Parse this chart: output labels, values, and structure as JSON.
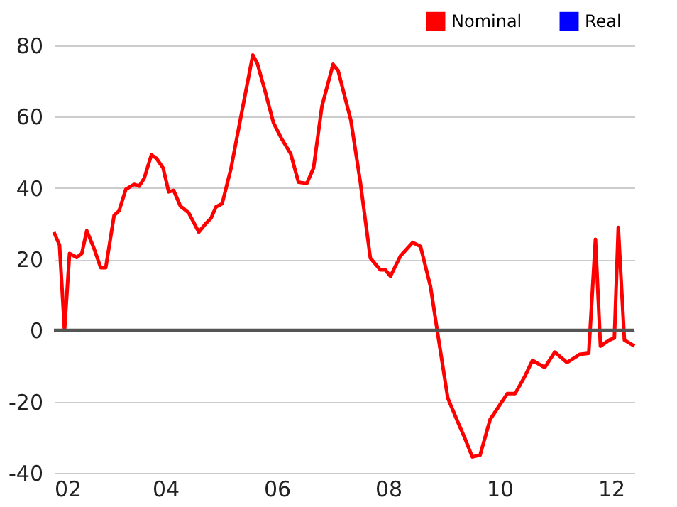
{
  "chart_data": {
    "type": "line",
    "x": [
      2002.0,
      2002.1,
      2002.19,
      2002.28,
      2002.41,
      2002.5,
      2002.59,
      2002.72,
      2002.84,
      2002.93,
      2003.08,
      2003.17,
      2003.29,
      2003.44,
      2003.53,
      2003.62,
      2003.75,
      2003.84,
      2003.96,
      2004.06,
      2004.15,
      2004.27,
      2004.42,
      2004.6,
      2004.72,
      2004.82,
      2004.91,
      2005.02,
      2005.18,
      2005.36,
      2005.45,
      2005.57,
      2005.65,
      2005.79,
      2005.94,
      2006.08,
      2006.25,
      2006.39,
      2006.54,
      2006.66,
      2006.81,
      2007.01,
      2007.1,
      2007.33,
      2007.5,
      2007.68,
      2007.86,
      2007.95,
      2008.04,
      2008.22,
      2008.44,
      2008.58,
      2008.76,
      2008.89,
      2009.07,
      2009.25,
      2009.38,
      2009.51,
      2009.65,
      2009.83,
      2010.14,
      2010.28,
      2010.45,
      2010.59,
      2010.81,
      2010.99,
      2011.21,
      2011.44,
      2011.6,
      2011.72,
      2011.81,
      2011.97,
      2012.06,
      2012.13,
      2012.24,
      2012.42
    ],
    "series": [
      {
        "name": "Nominal",
        "color": "#ff0000",
        "values": [
          27.6,
          24,
          0,
          21.6,
          20.5,
          21.6,
          28,
          23,
          17.6,
          17.6,
          32.3,
          33.6,
          39.6,
          41,
          40.5,
          42.7,
          49.3,
          48.3,
          45.6,
          38.9,
          39.3,
          34.9,
          33,
          27.6,
          29.9,
          31.5,
          34.7,
          35.6,
          45.6,
          60.3,
          67.6,
          77.3,
          75,
          67.2,
          58.3,
          54,
          49.6,
          41.6,
          41.3,
          45.6,
          62.9,
          74.7,
          73,
          59,
          41.6,
          20.3,
          17,
          17,
          15.2,
          20.9,
          24.7,
          23.6,
          12.3,
          -1,
          -19,
          -25.7,
          -30.4,
          -35.5,
          -35,
          -25,
          -17.7,
          -17.7,
          -13,
          -8.4,
          -10.4,
          -6.1,
          -9,
          -6.7,
          -6.4,
          25.6,
          -4.4,
          -2.7,
          -2.1,
          28.9,
          -2.7,
          -4.4
        ]
      },
      {
        "name": "Real",
        "color": "#0000ff",
        "values": [
          null,
          null,
          null,
          null,
          null,
          null,
          null,
          null,
          null,
          null,
          null,
          null,
          null,
          null,
          null,
          null,
          null,
          null,
          null,
          null,
          null,
          null,
          null,
          null,
          null,
          null,
          null,
          null,
          null,
          null,
          null,
          null,
          null,
          null,
          null,
          null,
          null,
          null,
          null,
          null,
          null,
          null,
          null,
          null,
          null,
          null,
          null,
          null,
          null,
          null,
          null,
          null,
          null,
          null,
          null,
          null,
          null,
          null,
          null,
          null,
          null,
          null,
          null,
          null,
          null,
          null,
          null,
          null,
          null,
          null,
          null,
          null,
          null,
          null,
          null,
          null
        ]
      }
    ],
    "xlim": [
      2002.0,
      2012.42
    ],
    "xticks": [
      {
        "value": 2002,
        "label": "02"
      },
      {
        "value": 2004,
        "label": "04"
      },
      {
        "value": 2006,
        "label": "06"
      },
      {
        "value": 2008,
        "label": "08"
      },
      {
        "value": 2010,
        "label": "10"
      },
      {
        "value": 2012,
        "label": "12"
      }
    ],
    "ylim": [
      -40,
      80
    ],
    "yticks": [
      -40,
      -20,
      0,
      20,
      40,
      60,
      80
    ],
    "grid": "y",
    "legend": "top right",
    "ref_lines": [
      {
        "axis": "y",
        "value": 0,
        "color": "#555555"
      }
    ]
  }
}
